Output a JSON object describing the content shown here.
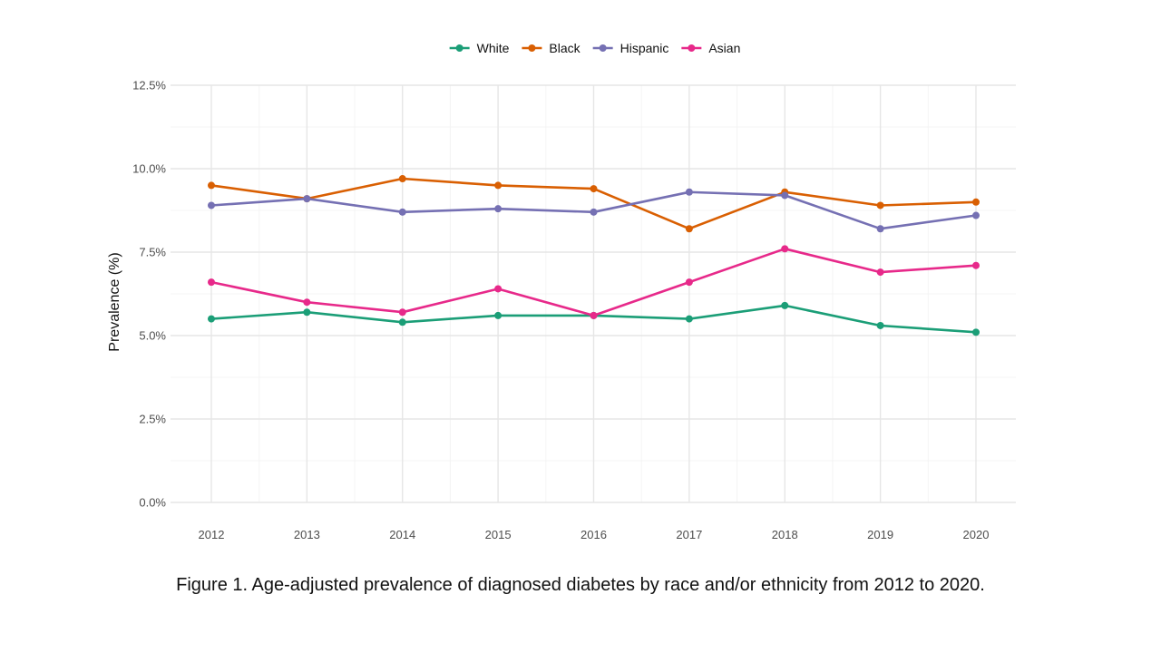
{
  "chart_data": {
    "type": "line",
    "title": "",
    "xlabel": "",
    "ylabel": "Prevalence (%)",
    "ylim": [
      0,
      12.5
    ],
    "yticks": [
      0,
      2.5,
      5.0,
      7.5,
      10.0,
      12.5
    ],
    "ytick_labels": [
      "0.0%",
      "2.5%",
      "5.0%",
      "7.5%",
      "10.0%",
      "12.5%"
    ],
    "x": [
      2012,
      2013,
      2014,
      2015,
      2016,
      2017,
      2018,
      2019,
      2020
    ],
    "x_labels": [
      "2012",
      "2013",
      "2014",
      "2015",
      "2016",
      "2017",
      "2018",
      "2019",
      "2020"
    ],
    "grid": true,
    "legend_position": "top",
    "series": [
      {
        "name": "White",
        "color": "#1b9e77",
        "values": [
          5.5,
          5.7,
          5.4,
          5.6,
          5.6,
          5.5,
          5.9,
          5.3,
          5.1
        ]
      },
      {
        "name": "Black",
        "color": "#d95f02",
        "values": [
          9.5,
          9.1,
          9.7,
          9.5,
          9.4,
          8.2,
          9.3,
          8.9,
          9.0
        ]
      },
      {
        "name": "Hispanic",
        "color": "#7570b3",
        "values": [
          8.9,
          9.1,
          8.7,
          8.8,
          8.7,
          9.3,
          9.2,
          8.2,
          8.6
        ]
      },
      {
        "name": "Asian",
        "color": "#e7298a",
        "values": [
          6.6,
          6.0,
          5.7,
          6.4,
          5.6,
          6.6,
          7.6,
          6.9,
          7.1
        ]
      }
    ]
  },
  "caption": "Figure 1. Age-adjusted  prevalence  of diagnosed  diabetes  by race and/or  ethnicity  from  2012 to 2020."
}
